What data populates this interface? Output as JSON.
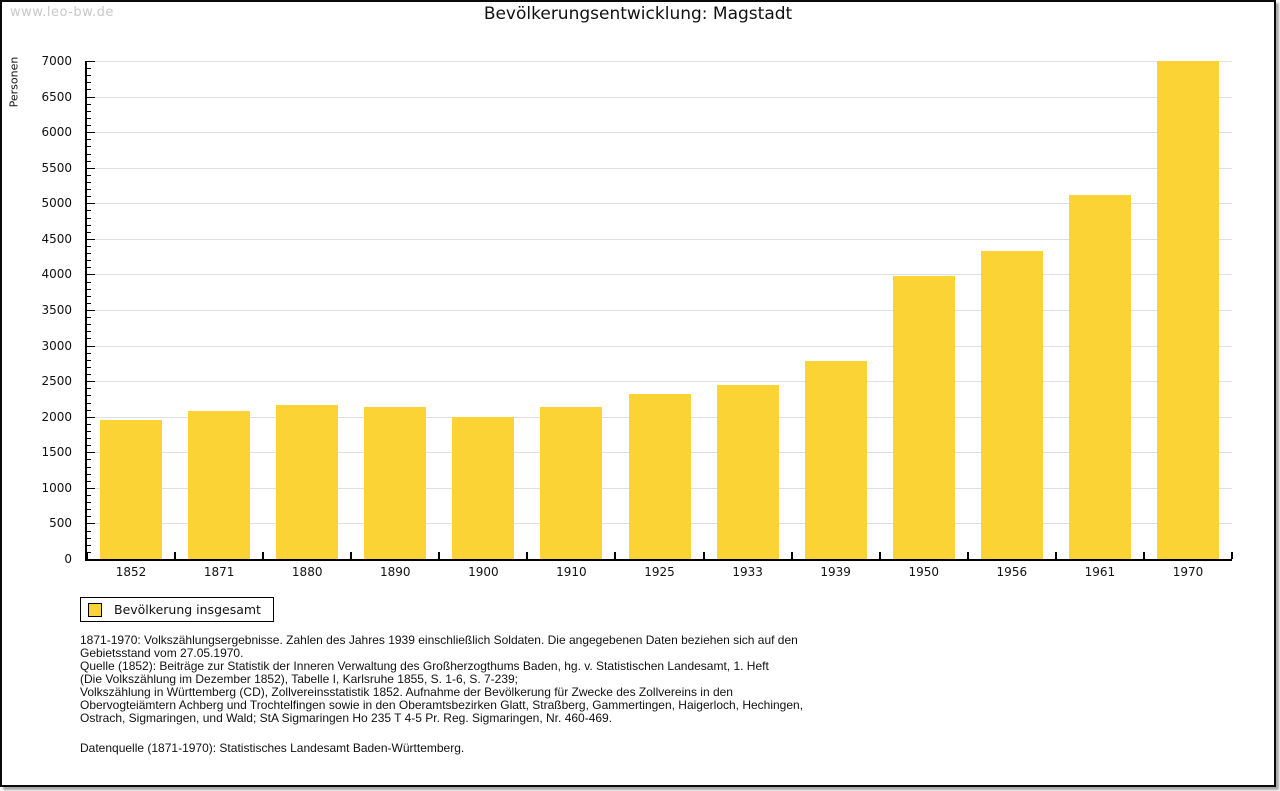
{
  "watermark": "www.leo-bw.de",
  "title": "Bevölkerungsentwicklung: Magstadt",
  "chart_data": {
    "type": "bar",
    "title": "Bevölkerungsentwicklung: Magstadt",
    "xlabel": "",
    "ylabel": "Personen",
    "categories": [
      "1852",
      "1871",
      "1880",
      "1890",
      "1900",
      "1910",
      "1925",
      "1933",
      "1939",
      "1950",
      "1956",
      "1961",
      "1970"
    ],
    "values": [
      1950,
      2080,
      2170,
      2140,
      1990,
      2130,
      2320,
      2450,
      2780,
      3980,
      4330,
      5120,
      7000
    ],
    "series_name": "Bevölkerung insgesamt",
    "ylim": [
      0,
      7000
    ],
    "ytick_step": 500,
    "yminor_step": 100,
    "grid": true,
    "legend_position": "bottom-left",
    "bar_color": "#fbd335",
    "gridline_color": "#e0e0e0"
  },
  "legend": {
    "label": "Bevölkerung insgesamt",
    "swatch_color": "#fbd335"
  },
  "footnotes": [
    "1871-1970: Volkszählungsergebnisse. Zahlen des Jahres 1939 einschließlich Soldaten. Die angegebenen Daten beziehen sich auf den",
    "Gebietsstand vom 27.05.1970.",
    "Quelle (1852): Beiträge zur Statistik der Inneren Verwaltung des Großherzogthums Baden, hg. v. Statistischen Landesamt, 1. Heft",
    "(Die Volkszählung im Dezember 1852), Tabelle I, Karlsruhe 1855, S. 1-6, S. 7-239;",
    "Volkszählung in Württemberg (CD), Zollvereinsstatistik 1852. Aufnahme der Bevölkerung für Zwecke des Zollvereins in den",
    "Obervogteiämtern Achberg und Trochtelfingen sowie in den Oberamtsbezirken Glatt, Straßberg, Gammertingen, Haigerloch, Hechingen,",
    "Ostrach, Sigmaringen, und Wald; StA Sigmaringen Ho 235 T 4-5 Pr. Reg. Sigmaringen, Nr. 460-469."
  ],
  "datasource": "Datenquelle (1871-1970): Statistisches Landesamt Baden-Württemberg."
}
